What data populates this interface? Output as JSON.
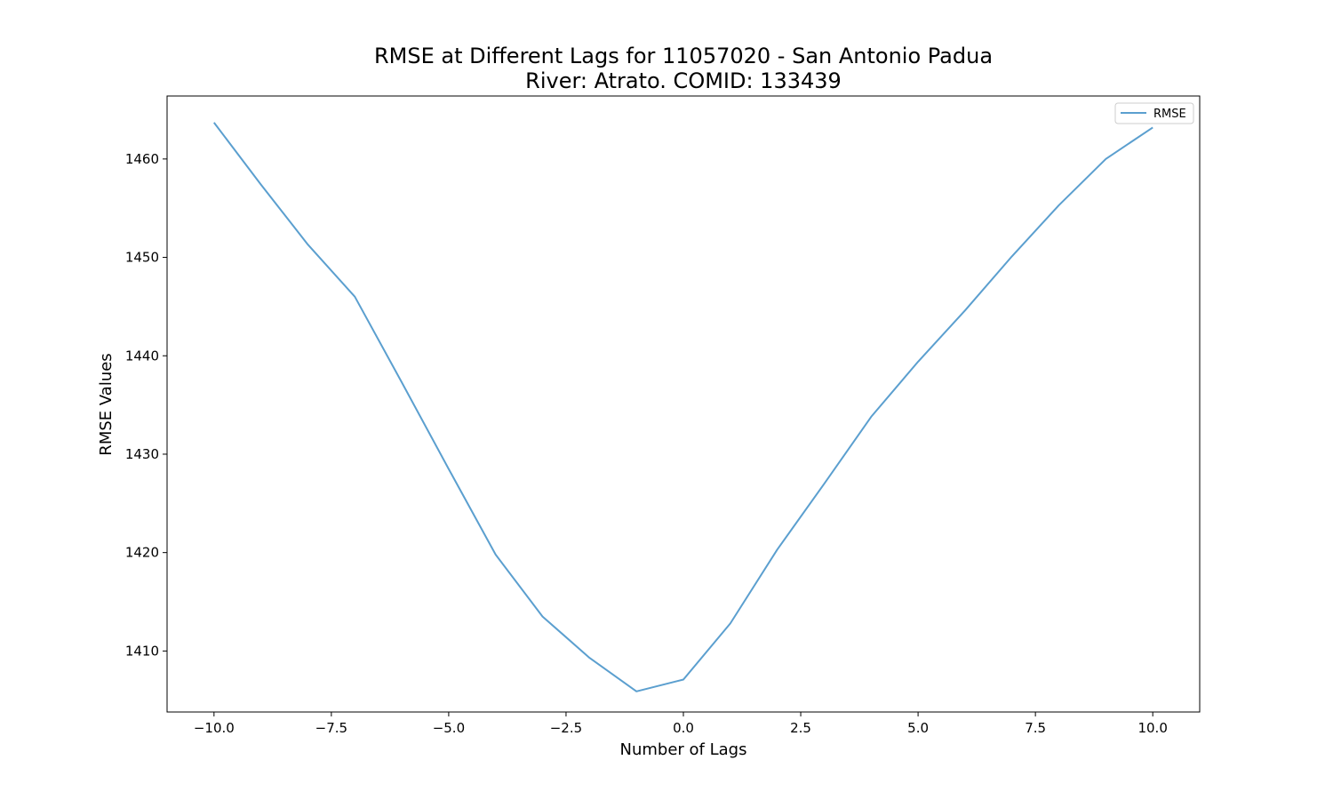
{
  "chart_data": {
    "type": "line",
    "title": "RMSE at Different Lags for 11057020 - San Antonio Padua",
    "subtitle": "River: Atrato. COMID: 133439",
    "xlabel": "Number of Lags",
    "ylabel": "RMSE Values",
    "xlim": [
      -11,
      11
    ],
    "ylim": [
      1403.8,
      1466.4
    ],
    "xticks": [
      -10.0,
      -7.5,
      -5.0,
      -2.5,
      0.0,
      2.5,
      5.0,
      7.5,
      10.0
    ],
    "xtick_labels": [
      "−10.0",
      "−7.5",
      "−5.0",
      "−2.5",
      "0.0",
      "2.5",
      "5.0",
      "7.5",
      "10.0"
    ],
    "yticks": [
      1410,
      1420,
      1430,
      1440,
      1450,
      1460
    ],
    "ytick_labels": [
      "1410",
      "1420",
      "1430",
      "1440",
      "1450",
      "1460"
    ],
    "grid": false,
    "legend_position": "top-right",
    "series": [
      {
        "name": "RMSE",
        "color": "#5b9fcf",
        "x": [
          -10,
          -9,
          -8,
          -7,
          -6,
          -5,
          -4,
          -3,
          -2,
          -1,
          0,
          1,
          2,
          3,
          4,
          5,
          6,
          7,
          8,
          9,
          10
        ],
        "y": [
          1463.7,
          1457.4,
          1451.3,
          1446.0,
          1437.3,
          1428.5,
          1419.8,
          1413.5,
          1409.3,
          1405.9,
          1407.1,
          1412.8,
          1420.3,
          1427.0,
          1433.8,
          1439.4,
          1444.6,
          1450.1,
          1455.3,
          1460.0,
          1463.2
        ]
      }
    ]
  }
}
